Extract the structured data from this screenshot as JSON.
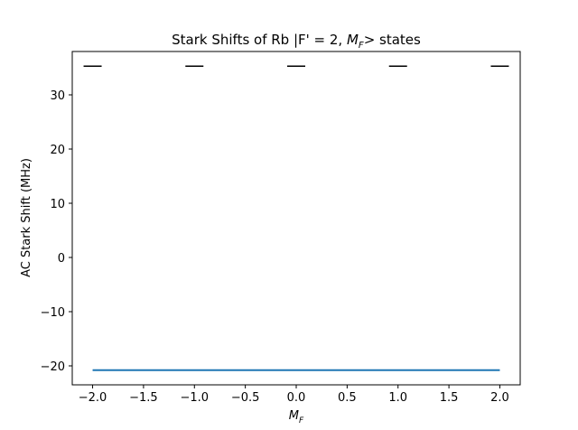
{
  "chart_data": {
    "type": "line",
    "title": {
      "prefix": "Stark Shifts of Rb |F' = 2, ",
      "math_base": "M",
      "math_sub": "F",
      "suffix": "> states"
    },
    "xlabel": {
      "base": "M",
      "sub": "F"
    },
    "ylabel": "AC Stark Shift (MHz)",
    "xlim": [
      -2.2,
      2.2
    ],
    "ylim": [
      -23.5,
      38.0
    ],
    "x_ticks": [
      -2.0,
      -1.5,
      -1.0,
      -0.5,
      0.0,
      0.5,
      1.0,
      1.5,
      2.0
    ],
    "x_tick_labels": [
      "−2.0",
      "−1.5",
      "−1.0",
      "−0.5",
      "0.0",
      "0.5",
      "1.0",
      "1.5",
      "2.0"
    ],
    "y_ticks": [
      -20,
      -10,
      0,
      10,
      20,
      30
    ],
    "y_tick_labels": [
      "−20",
      "−10",
      "0",
      "10",
      "20",
      "30"
    ],
    "grid": false,
    "legend": "none",
    "series": [
      {
        "type": "line",
        "color": "#1f77b4",
        "x": [
          -2,
          -1,
          0,
          1,
          2
        ],
        "y": [
          -20.8,
          -20.8,
          -20.8,
          -20.8,
          -20.8
        ]
      },
      {
        "type": "level-markers",
        "color": "#000000",
        "x": [
          -2,
          -1,
          0,
          1,
          2
        ],
        "y": [
          35.3,
          35.3,
          35.3,
          35.3,
          35.3
        ]
      }
    ]
  }
}
